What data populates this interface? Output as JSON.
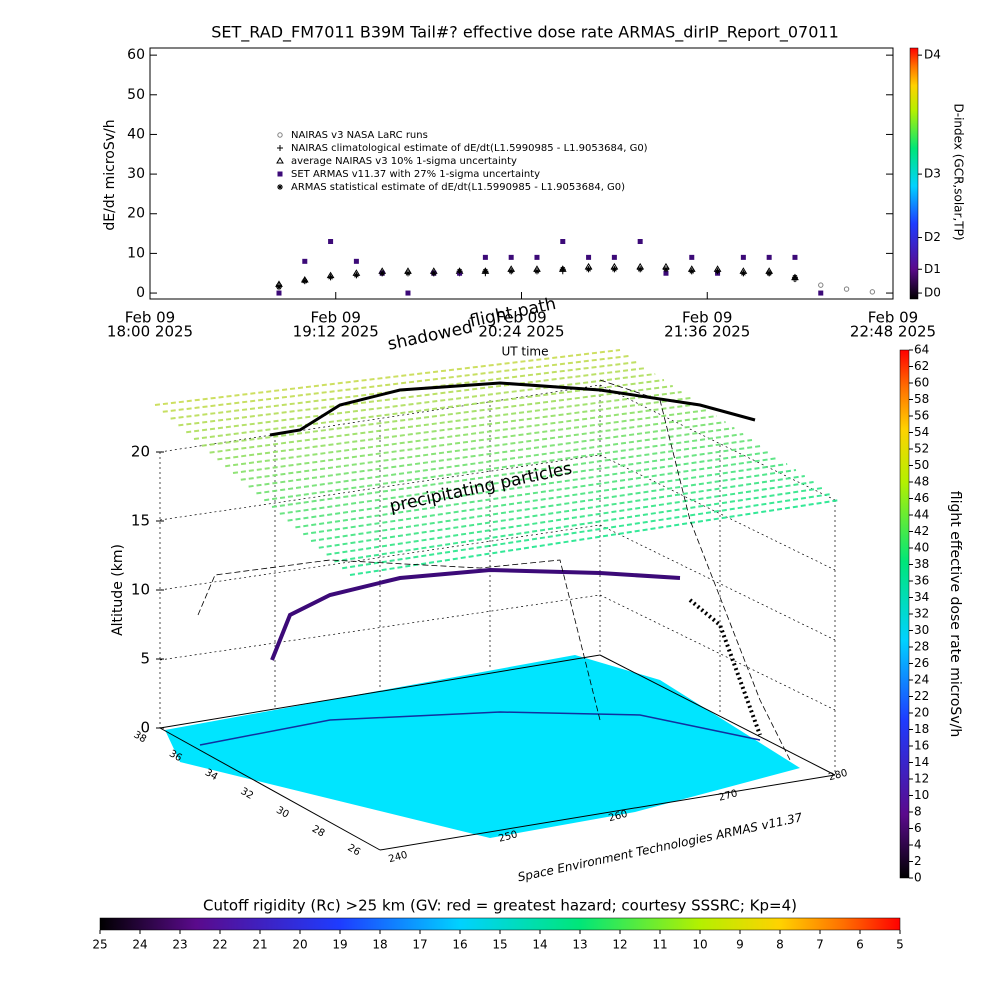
{
  "chart_data": [
    {
      "type": "timeseries",
      "title": "SET_RAD_FM7011  B39M Tail#? effective dose rate ARMAS_dirIP_Report_07011",
      "ylabel": "dE/dt microSv/h",
      "xlabel": "UT time",
      "y2label": "D-index (GCR,solar,TP)",
      "xlim": [
        "2025-02-09 18:00",
        "2025-02-09 22:48"
      ],
      "xticks": [
        {
          "value": "2025-02-09 18:00",
          "label": [
            "Feb 09",
            "18:00 2025"
          ]
        },
        {
          "value": "2025-02-09 19:12",
          "label": [
            "Feb 09",
            "19:12 2025"
          ]
        },
        {
          "value": "2025-02-09 20:24",
          "label": [
            "Feb 09",
            "20:24 2025"
          ]
        },
        {
          "value": "2025-02-09 21:36",
          "label": [
            "Feb 09",
            "21:36 2025"
          ]
        },
        {
          "value": "2025-02-09 22:48",
          "label": [
            "Feb 09",
            "22:48 2025"
          ]
        }
      ],
      "ylim": [
        -1.5,
        61.8
      ],
      "yticks": [
        0,
        10,
        20,
        30,
        40,
        50,
        60
      ],
      "y2lim": [
        -1.5,
        61.8
      ],
      "y2ticks": [
        {
          "value": 0,
          "label": "D0"
        },
        {
          "value": 6,
          "label": "D1"
        },
        {
          "value": 14,
          "label": "D2"
        },
        {
          "value": 30,
          "label": "D3"
        },
        {
          "value": 60,
          "label": "D4"
        }
      ],
      "x": [
        "2025-02-09 18:50",
        "2025-02-09 19:00",
        "2025-02-09 19:10",
        "2025-02-09 19:20",
        "2025-02-09 19:30",
        "2025-02-09 19:40",
        "2025-02-09 19:50",
        "2025-02-09 20:00",
        "2025-02-09 20:10",
        "2025-02-09 20:20",
        "2025-02-09 20:30",
        "2025-02-09 20:40",
        "2025-02-09 20:50",
        "2025-02-09 21:00",
        "2025-02-09 21:10",
        "2025-02-09 21:20",
        "2025-02-09 21:30",
        "2025-02-09 21:40",
        "2025-02-09 21:50",
        "2025-02-09 22:00",
        "2025-02-09 22:10",
        "2025-02-09 22:20",
        "2025-02-09 22:30",
        "2025-02-09 22:40"
      ],
      "series": [
        {
          "name": "NAIRAS v3 NASA LaRC runs",
          "color": "#808080",
          "marker": "circle",
          "values": [
            null,
            null,
            null,
            null,
            null,
            null,
            null,
            null,
            null,
            null,
            null,
            null,
            null,
            null,
            null,
            null,
            null,
            null,
            null,
            5,
            3.5,
            2,
            1,
            0.3
          ]
        },
        {
          "name": "NAIRAS climatological estimate of dE/dt(L1.5990985 - L1.9053684, G0)",
          "color": "#000000",
          "marker": "plus",
          "values": [
            2,
            3,
            4,
            4.5,
            5,
            5,
            5,
            5,
            5,
            5.5,
            5.5,
            5.5,
            6,
            6,
            6,
            6,
            5.5,
            5.5,
            5,
            5,
            3.5,
            null,
            null,
            null
          ]
        },
        {
          "name": "average NAIRAS v3 10% 1-sigma uncertainty",
          "color": "#000000",
          "marker": "triangle",
          "values": [
            2.2,
            3.3,
            4.4,
            5,
            5.5,
            5.5,
            5.5,
            5.5,
            5.5,
            6,
            6,
            6,
            6.6,
            6.6,
            6.6,
            6.6,
            6,
            6,
            5.5,
            5.5,
            3.9,
            null,
            null,
            null
          ]
        },
        {
          "name": "SET ARMAS v11.37 with 27% 1-sigma uncertainty",
          "color": "#3c0a78",
          "marker": "square",
          "values": [
            0,
            8,
            13,
            8,
            5,
            0,
            5,
            5,
            9,
            9,
            9,
            13,
            9,
            9,
            13,
            5,
            9,
            5,
            9,
            9,
            9,
            0,
            null,
            null
          ]
        },
        {
          "name": "ARMAS statistical estimate of dE/dt(L1.5990985 - L1.9053684, G0)",
          "color": "#000000",
          "marker": "asterisk",
          "values": [
            1.5,
            3,
            4,
            4.5,
            5,
            5,
            5,
            5.5,
            5.5,
            5.5,
            5.5,
            6,
            6,
            6,
            6,
            6,
            5.5,
            5.5,
            5,
            5,
            4,
            null,
            null,
            null
          ]
        }
      ]
    },
    {
      "type": "globe3d",
      "zlabel": "Altitude (km)",
      "zlim": [
        0,
        20
      ],
      "zticks": [
        0,
        5,
        10,
        15,
        20
      ],
      "latticks": [
        38,
        36,
        34,
        32,
        30,
        28,
        26
      ],
      "lonticks": [
        240,
        250,
        260,
        270,
        280
      ],
      "annotations": [
        "shadowed",
        "flight path",
        "precipitating particles"
      ],
      "footer": "Space Environment Technologies ARMAS v11.37"
    },
    {
      "type": "colorbar",
      "label": "flight effective dose rate microSv/h",
      "lim": [
        0,
        64
      ],
      "ticks": [
        0,
        2,
        4,
        6,
        8,
        10,
        12,
        14,
        16,
        18,
        20,
        22,
        24,
        26,
        28,
        30,
        32,
        34,
        36,
        38,
        40,
        42,
        44,
        46,
        48,
        50,
        52,
        54,
        56,
        58,
        60,
        62,
        64
      ]
    },
    {
      "type": "colorbar",
      "label": "Cutoff rigidity (Rc) >25 km (GV: red = greatest hazard; courtesy SSSRC; Kp=4)",
      "lim": [
        25,
        5
      ],
      "ticks": [
        25,
        24,
        23,
        22,
        21,
        20,
        19,
        18,
        17,
        16,
        15,
        14,
        13,
        12,
        11,
        10,
        9,
        8,
        7,
        6,
        5
      ]
    }
  ]
}
